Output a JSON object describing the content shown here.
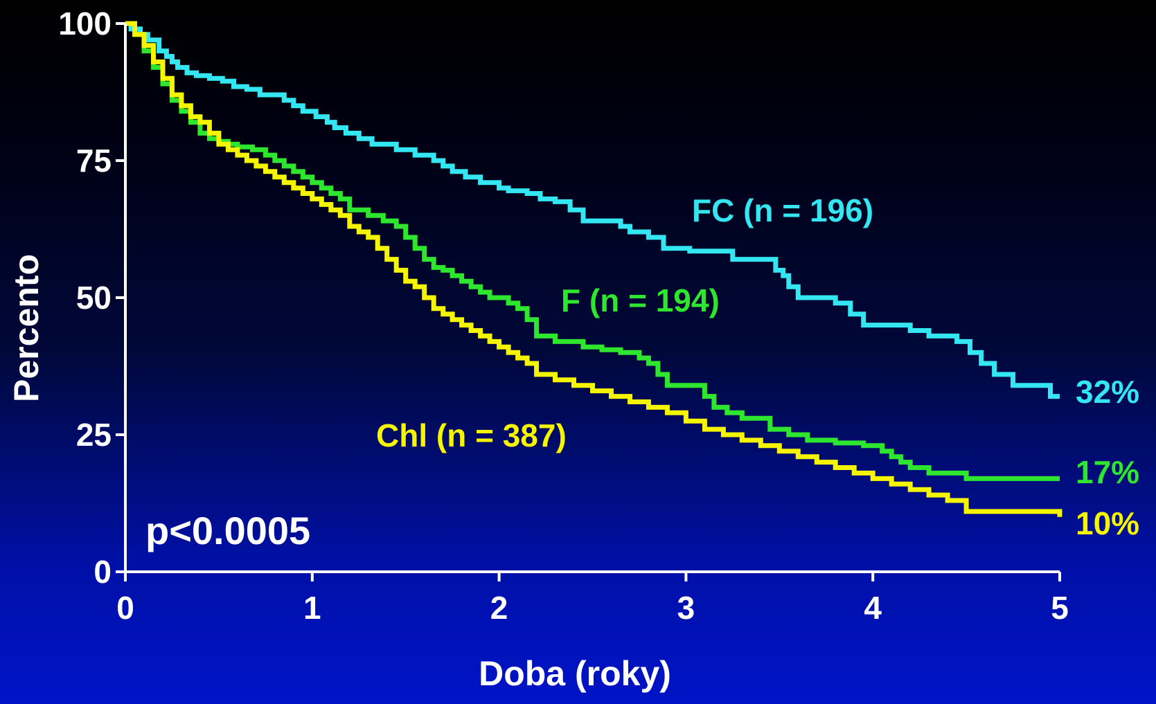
{
  "chart_data": {
    "type": "line",
    "xlabel": "Doba (roky)",
    "ylabel": "Percento",
    "xlim": [
      0,
      5
    ],
    "ylim": [
      0,
      100
    ],
    "x_ticks": [
      "0",
      "1",
      "2",
      "3",
      "4",
      "5"
    ],
    "y_ticks": [
      "0",
      "25",
      "50",
      "75",
      "100"
    ],
    "grid": false,
    "annotation": "p<0.0005",
    "series": [
      {
        "name": "FC (n = 196)",
        "color": "#33e6f2",
        "end_label": "32%",
        "x": [
          0,
          0.03,
          0.08,
          0.12,
          0.18,
          0.22,
          0.25,
          0.28,
          0.33,
          0.38,
          0.45,
          0.52,
          0.58,
          0.65,
          0.72,
          0.85,
          0.9,
          0.95,
          1.02,
          1.08,
          1.12,
          1.18,
          1.25,
          1.32,
          1.45,
          1.55,
          1.65,
          1.7,
          1.75,
          1.82,
          1.9,
          2.0,
          2.05,
          2.15,
          2.22,
          2.3,
          2.38,
          2.45,
          2.48,
          2.65,
          2.7,
          2.8,
          2.88,
          2.95,
          3.02,
          3.1,
          3.25,
          3.35,
          3.45,
          3.48,
          3.52,
          3.55,
          3.6,
          3.72,
          3.8,
          3.88,
          3.95,
          4.1,
          4.2,
          4.3,
          4.45,
          4.52,
          4.58,
          4.65,
          4.75,
          4.95,
          5.0
        ],
        "y": [
          100,
          99,
          98,
          97,
          95,
          94,
          93,
          92,
          91,
          90.5,
          90,
          89.5,
          88.5,
          88,
          87,
          86,
          85,
          84,
          83,
          82,
          81,
          80,
          79,
          78,
          77,
          76,
          75,
          74,
          73,
          72,
          71,
          70,
          69.5,
          69,
          68,
          67.5,
          66,
          64,
          64,
          63,
          62,
          61,
          59,
          59,
          58.5,
          58.5,
          57,
          57,
          57,
          55,
          54,
          52,
          50,
          50,
          49,
          47,
          45,
          45,
          44,
          43,
          42,
          40,
          38,
          36,
          34,
          32,
          32
        ]
      },
      {
        "name": "F (n = 194)",
        "color": "#2ee62e",
        "end_label": "17%",
        "x": [
          0,
          0.05,
          0.1,
          0.15,
          0.2,
          0.25,
          0.3,
          0.35,
          0.4,
          0.45,
          0.5,
          0.55,
          0.6,
          0.68,
          0.75,
          0.8,
          0.85,
          0.9,
          0.95,
          1.0,
          1.05,
          1.1,
          1.15,
          1.2,
          1.3,
          1.38,
          1.45,
          1.5,
          1.55,
          1.6,
          1.65,
          1.7,
          1.75,
          1.8,
          1.85,
          1.9,
          1.95,
          2.05,
          2.1,
          2.15,
          2.2,
          2.3,
          2.45,
          2.55,
          2.65,
          2.75,
          2.8,
          2.85,
          2.9,
          3.1,
          3.15,
          3.22,
          3.3,
          3.45,
          3.55,
          3.65,
          3.8,
          3.95,
          4.05,
          4.1,
          4.15,
          4.2,
          4.3,
          4.5,
          5.0
        ],
        "y": [
          100,
          98,
          95,
          92,
          89,
          86,
          84,
          82,
          80,
          79,
          78.5,
          78,
          77.5,
          77,
          76,
          75,
          74,
          73,
          72,
          71,
          70,
          69,
          68,
          66,
          65,
          64,
          63,
          61,
          59,
          57,
          55.5,
          55,
          54,
          53,
          52,
          51,
          50,
          49,
          48,
          46,
          43,
          42,
          41,
          40.5,
          40,
          39,
          38,
          36,
          34,
          32,
          30,
          29,
          28,
          26,
          25,
          24,
          23.5,
          23,
          22,
          21,
          20,
          19,
          18,
          17,
          17
        ]
      },
      {
        "name": "Chl (n = 387)",
        "color": "#f5f500",
        "end_label": "10%",
        "x": [
          0,
          0.05,
          0.1,
          0.15,
          0.2,
          0.25,
          0.3,
          0.35,
          0.4,
          0.45,
          0.5,
          0.55,
          0.6,
          0.65,
          0.7,
          0.75,
          0.8,
          0.85,
          0.9,
          0.95,
          1.0,
          1.05,
          1.1,
          1.15,
          1.2,
          1.25,
          1.3,
          1.35,
          1.4,
          1.45,
          1.5,
          1.55,
          1.6,
          1.65,
          1.7,
          1.75,
          1.8,
          1.85,
          1.9,
          1.95,
          2.0,
          2.05,
          2.1,
          2.15,
          2.2,
          2.3,
          2.4,
          2.5,
          2.6,
          2.7,
          2.8,
          2.9,
          3.0,
          3.1,
          3.2,
          3.3,
          3.4,
          3.5,
          3.6,
          3.7,
          3.8,
          3.9,
          4.0,
          4.1,
          4.2,
          4.3,
          4.4,
          4.5,
          5.0
        ],
        "y": [
          100,
          98,
          96,
          93,
          90,
          87,
          85,
          83,
          82,
          80,
          78,
          77,
          76,
          75,
          74,
          73,
          72,
          71,
          70,
          69,
          68,
          67,
          66,
          65,
          63,
          62,
          61,
          59,
          57,
          55,
          53,
          52,
          50,
          48,
          47,
          46,
          45,
          44,
          43,
          42,
          41,
          40,
          39,
          38,
          36,
          35,
          34,
          33,
          32,
          31,
          30,
          29,
          27.5,
          26,
          25,
          24,
          23,
          22,
          21,
          20,
          19,
          18,
          17,
          16,
          15,
          14,
          13,
          11,
          10
        ]
      }
    ]
  }
}
